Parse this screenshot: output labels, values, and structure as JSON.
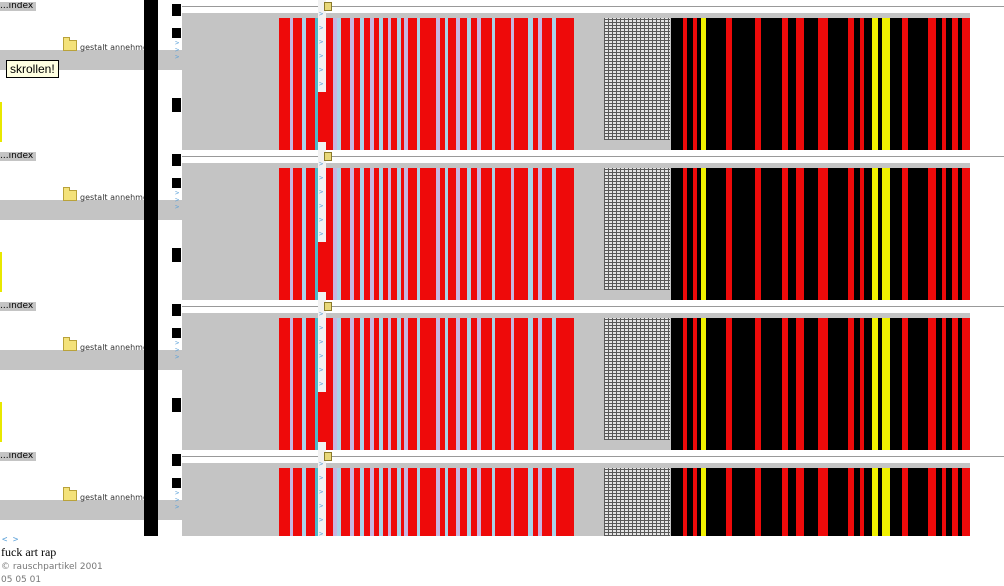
{
  "tooltip": {
    "text": "skrollen!"
  },
  "frames": [
    {
      "index_label": "...index",
      "folder_label": "gestalt annehmen"
    },
    {
      "index_label": "...index",
      "folder_label": "gestalt annehmen"
    },
    {
      "index_label": "...index",
      "folder_label": "gestalt annehmen"
    },
    {
      "index_label": "...index",
      "folder_label": "gestalt annehmen"
    }
  ],
  "footer": {
    "nav_arrows": "< >",
    "title": "fuck art rap",
    "copyright": "© rauschpartikel 2001",
    "date": "05 05 01"
  },
  "colors": {
    "red": "#ee0a0a",
    "lavender": "#c7b6e0",
    "lightblue": "#a9d3e8",
    "teal": "#4fb8c8",
    "black": "#000000",
    "yellow": "#f0f000",
    "gray": "#c4c4c4"
  }
}
